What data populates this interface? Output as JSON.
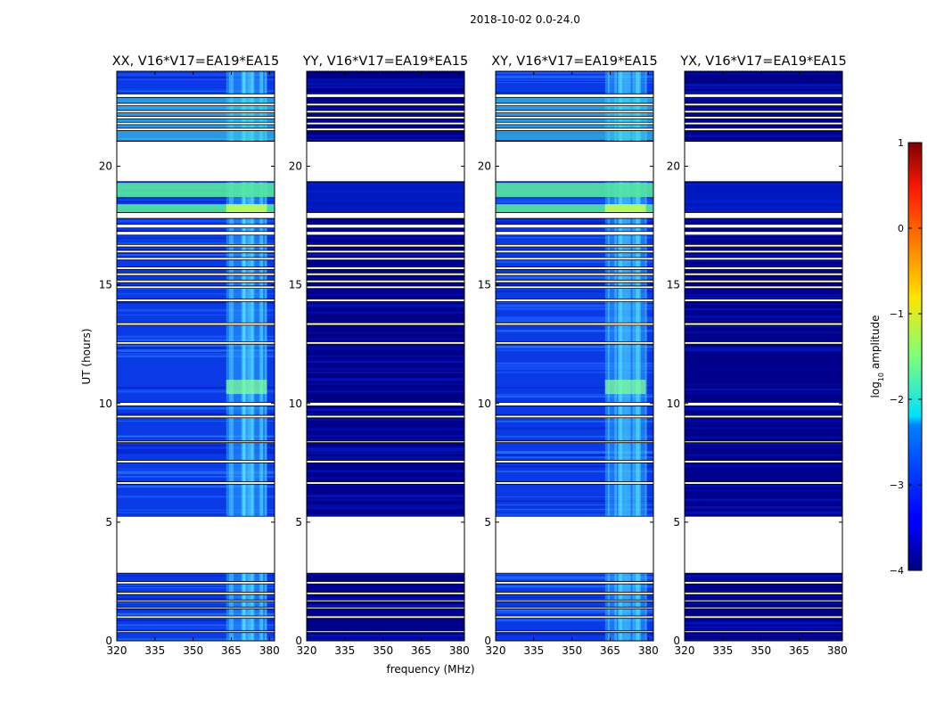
{
  "chart_data": {
    "type": "heatmap",
    "title": "2018-10-02 0.0-24.0",
    "xlabel": "frequency (MHz)",
    "ylabel": "UT (hours)",
    "xlim": [
      320,
      382
    ],
    "ylim": [
      0,
      24
    ],
    "x_ticks": [
      "320",
      "335",
      "350",
      "365",
      "380"
    ],
    "y_ticks": [
      "0",
      "5",
      "10",
      "15",
      "20"
    ],
    "colorbar": {
      "label": "log10 amplitude",
      "label_main": "log",
      "label_sub": "10",
      "label_rest": " amplitude",
      "range": [
        -4,
        1
      ],
      "ticks": [
        "1",
        "0",
        "−1",
        "−2",
        "−3",
        "−4"
      ],
      "colormap": "jet"
    },
    "panels": [
      {
        "title": "XX, V16*V17=EA19*EA15",
        "intensity": "high"
      },
      {
        "title": "YY, V16*V17=EA19*EA15",
        "intensity": "low"
      },
      {
        "title": "XY, V16*V17=EA19*EA15",
        "intensity": "high"
      },
      {
        "title": "YX, V16*V17=EA19*EA15",
        "intensity": "low"
      }
    ],
    "data_gaps_ut_hours": [
      [
        0.35,
        0.42
      ],
      [
        0.95,
        1.05
      ],
      [
        1.35,
        1.42
      ],
      [
        1.65,
        1.72
      ],
      [
        1.95,
        2.05
      ],
      [
        2.4,
        2.5
      ],
      [
        2.85,
        5.25
      ],
      [
        6.6,
        6.7
      ],
      [
        7.5,
        7.6
      ],
      [
        8.35,
        8.42
      ],
      [
        9.4,
        9.5
      ],
      [
        9.9,
        10.05
      ],
      [
        12.5,
        12.6
      ],
      [
        13.3,
        13.4
      ],
      [
        14.3,
        14.4
      ],
      [
        14.85,
        14.95
      ],
      [
        15.1,
        15.2
      ],
      [
        15.4,
        15.5
      ],
      [
        15.65,
        15.75
      ],
      [
        16.05,
        16.15
      ],
      [
        16.35,
        16.45
      ],
      [
        16.6,
        16.7
      ],
      [
        17.1,
        17.25
      ],
      [
        17.4,
        17.55
      ],
      [
        17.8,
        18.05
      ],
      [
        19.35,
        21.05
      ],
      [
        21.5,
        21.6
      ],
      [
        21.75,
        21.85
      ],
      [
        22.0,
        22.1
      ],
      [
        22.25,
        22.35
      ],
      [
        22.55,
        22.65
      ],
      [
        22.9,
        23.05
      ]
    ]
  }
}
